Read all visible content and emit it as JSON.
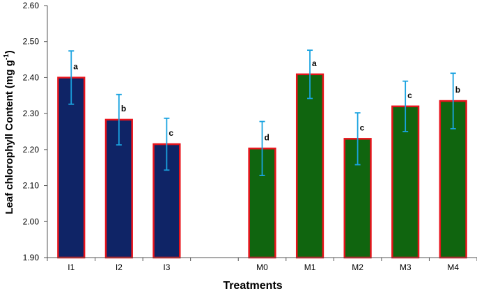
{
  "chart_data": {
    "type": "bar",
    "title": "",
    "xlabel": "Treatments",
    "ylabel_main": "Leaf chlorophyll Content (mg g",
    "ylabel_sup": "-1",
    "ylabel_close": ")",
    "ylim": [
      1.9,
      2.6
    ],
    "ytick_step": 0.1,
    "yticks": [
      "1.90",
      "2.00",
      "2.10",
      "2.20",
      "2.30",
      "2.40",
      "2.50",
      "2.60"
    ],
    "categories": [
      "I1",
      "I2",
      "I3",
      "",
      "M0",
      "M1",
      "M2",
      "M3",
      "M4"
    ],
    "values": [
      2.4,
      2.283,
      2.215,
      null,
      2.203,
      2.409,
      2.23,
      2.32,
      2.335
    ],
    "errors": [
      0.074,
      0.07,
      0.072,
      null,
      0.075,
      0.067,
      0.072,
      0.07,
      0.077
    ],
    "significance": [
      "a",
      "b",
      "c",
      "",
      "d",
      "a",
      "c",
      "c",
      "b"
    ],
    "groups": [
      "I",
      "I",
      "I",
      "",
      "M",
      "M",
      "M",
      "M",
      "M"
    ]
  },
  "colors": {
    "I": "#0f2466",
    "M": "#10650f",
    "bar_edge": "#e8141c",
    "error_bar": "#1aa3e0",
    "axis": "#555555"
  }
}
